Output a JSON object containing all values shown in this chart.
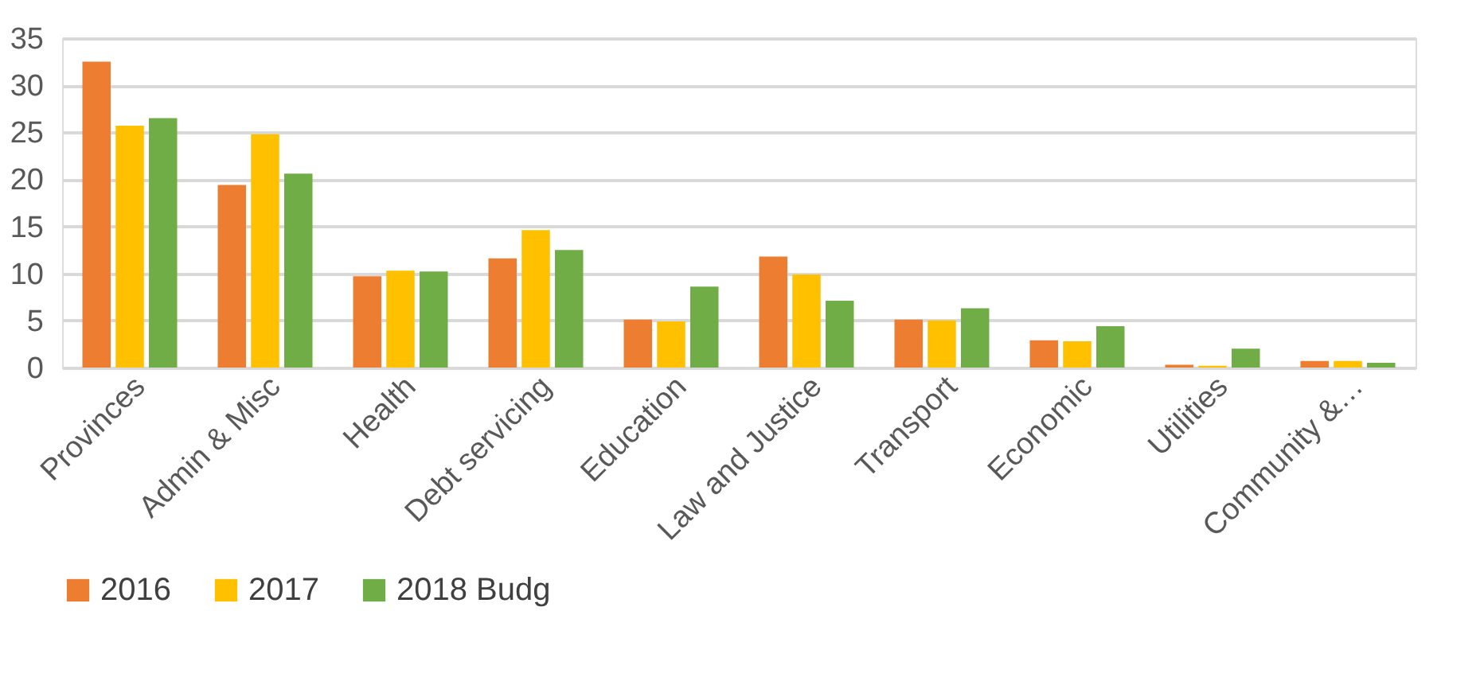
{
  "chart_data": {
    "type": "bar",
    "categories": [
      "Provinces",
      "Admin & Misc",
      "Health",
      "Debt servicing",
      "Education",
      "Law and Justice",
      "Transport",
      "Economic",
      "Utilities",
      "Community &…"
    ],
    "series": [
      {
        "name": "2016",
        "color": "#ed7d31",
        "values": [
          32.5,
          19.4,
          9.7,
          11.6,
          5.1,
          11.8,
          5.1,
          2.9,
          0.3,
          0.7
        ]
      },
      {
        "name": "2017",
        "color": "#ffc000",
        "values": [
          25.7,
          24.8,
          10.3,
          14.6,
          4.9,
          9.9,
          5.0,
          2.8,
          0.2,
          0.7
        ]
      },
      {
        "name": "2018 Budg",
        "color": "#70ad47",
        "values": [
          26.5,
          20.6,
          10.2,
          12.5,
          8.6,
          7.1,
          6.3,
          4.4,
          2.0,
          0.5
        ]
      }
    ],
    "ylim": [
      0,
      35
    ],
    "yticks": [
      0,
      5,
      10,
      15,
      20,
      25,
      30,
      35
    ],
    "grid": "y",
    "legend": "bottom"
  }
}
